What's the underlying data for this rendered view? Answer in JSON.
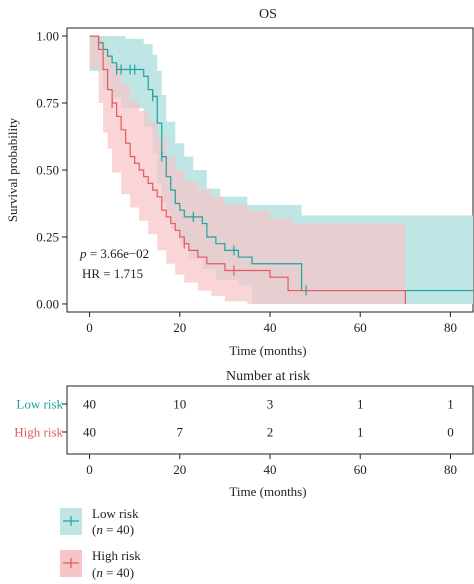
{
  "title": "OS",
  "colors": {
    "low": "#1aa5a0",
    "high": "#e45a5f",
    "low_band": "#bfe6e4",
    "high_band": "#f6c5c7",
    "overlap": "#dcc7c4"
  },
  "annotations": {
    "p_label": "p",
    "p_value": " = 3.66e−02",
    "hr": "HR = 1.715"
  },
  "chart_data": [
    {
      "type": "line",
      "title": "OS",
      "xlabel": "Time (months)",
      "ylabel": "Survival probability",
      "xlim": [
        -5,
        85
      ],
      "ylim": [
        -0.03,
        1.03
      ],
      "x_ticks": [
        0,
        20,
        40,
        60,
        80
      ],
      "y_ticks": [
        0.0,
        0.25,
        0.5,
        0.75,
        1.0
      ],
      "y_tick_labels": [
        "0.00",
        "0.25",
        "0.50",
        "0.75",
        "1.00"
      ],
      "grid": false,
      "series": [
        {
          "name": "Low risk",
          "steps": [
            [
              0,
              1.0
            ],
            [
              2,
              0.975
            ],
            [
              3,
              0.95
            ],
            [
              4,
              0.925
            ],
            [
              5,
              0.9
            ],
            [
              6,
              0.875
            ],
            [
              12,
              0.85
            ],
            [
              13,
              0.8
            ],
            [
              14,
              0.775
            ],
            [
              15,
              0.675
            ],
            [
              16,
              0.55
            ],
            [
              17,
              0.475
            ],
            [
              18,
              0.425
            ],
            [
              19,
              0.375
            ],
            [
              20,
              0.35
            ],
            [
              21,
              0.325
            ],
            [
              25,
              0.3
            ],
            [
              26,
              0.25
            ],
            [
              28,
              0.225
            ],
            [
              30,
              0.2
            ],
            [
              33,
              0.175
            ],
            [
              36,
              0.15
            ],
            [
              47,
              0.05
            ],
            [
              85,
              0.05
            ]
          ],
          "ci_upper": [
            [
              0,
              1.0
            ],
            [
              4,
              1.0
            ],
            [
              8,
              0.99
            ],
            [
              12,
              0.97
            ],
            [
              14,
              0.93
            ],
            [
              15,
              0.87
            ],
            [
              16,
              0.78
            ],
            [
              17,
              0.68
            ],
            [
              19,
              0.6
            ],
            [
              21,
              0.55
            ],
            [
              23,
              0.5
            ],
            [
              26,
              0.43
            ],
            [
              29,
              0.4
            ],
            [
              35,
              0.37
            ],
            [
              47,
              0.33
            ],
            [
              85,
              0.33
            ]
          ],
          "ci_lower": [
            [
              0,
              1.0
            ],
            [
              3,
              0.87
            ],
            [
              5,
              0.8
            ],
            [
              7,
              0.77
            ],
            [
              12,
              0.73
            ],
            [
              14,
              0.66
            ],
            [
              15,
              0.56
            ],
            [
              16,
              0.45
            ],
            [
              17,
              0.38
            ],
            [
              18,
              0.34
            ],
            [
              20,
              0.28
            ],
            [
              22,
              0.22
            ],
            [
              25,
              0.17
            ],
            [
              28,
              0.13
            ],
            [
              33,
              0.09
            ],
            [
              36,
              0.07
            ],
            [
              47,
              0.0
            ],
            [
              85,
              0.0
            ]
          ],
          "censor_marks": [
            [
              6,
              0.875
            ],
            [
              7,
              0.875
            ],
            [
              9,
              0.875
            ],
            [
              10,
              0.875
            ],
            [
              14,
              0.775
            ],
            [
              16,
              0.55
            ],
            [
              23,
              0.325
            ],
            [
              32,
              0.2
            ],
            [
              48,
              0.05
            ]
          ]
        },
        {
          "name": "High risk",
          "steps": [
            [
              0,
              1.0
            ],
            [
              2,
              0.95
            ],
            [
              3,
              0.875
            ],
            [
              4,
              0.8
            ],
            [
              5,
              0.75
            ],
            [
              6,
              0.7
            ],
            [
              7,
              0.65
            ],
            [
              8,
              0.6
            ],
            [
              9,
              0.55
            ],
            [
              10,
              0.525
            ],
            [
              11,
              0.5
            ],
            [
              12,
              0.475
            ],
            [
              13,
              0.45
            ],
            [
              14,
              0.425
            ],
            [
              15,
              0.4
            ],
            [
              16,
              0.35
            ],
            [
              17,
              0.325
            ],
            [
              18,
              0.3
            ],
            [
              19,
              0.275
            ],
            [
              20,
              0.25
            ],
            [
              21,
              0.225
            ],
            [
              22,
              0.2
            ],
            [
              24,
              0.175
            ],
            [
              26,
              0.15
            ],
            [
              30,
              0.125
            ],
            [
              40,
              0.1
            ],
            [
              44,
              0.05
            ],
            [
              70,
              0.0
            ]
          ],
          "ci_upper": [
            [
              0,
              1.0
            ],
            [
              2,
              1.0
            ],
            [
              3,
              0.97
            ],
            [
              4,
              0.93
            ],
            [
              5,
              0.89
            ],
            [
              7,
              0.82
            ],
            [
              9,
              0.76
            ],
            [
              11,
              0.72
            ],
            [
              13,
              0.68
            ],
            [
              15,
              0.62
            ],
            [
              17,
              0.55
            ],
            [
              19,
              0.5
            ],
            [
              21,
              0.46
            ],
            [
              24,
              0.43
            ],
            [
              27,
              0.4
            ],
            [
              30,
              0.37
            ],
            [
              35,
              0.35
            ],
            [
              40,
              0.32
            ],
            [
              45,
              0.3
            ],
            [
              70,
              0.3
            ]
          ],
          "ci_lower": [
            [
              0,
              1.0
            ],
            [
              2,
              0.88
            ],
            [
              3,
              0.75
            ],
            [
              4,
              0.64
            ],
            [
              5,
              0.58
            ],
            [
              7,
              0.49
            ],
            [
              9,
              0.41
            ],
            [
              11,
              0.36
            ],
            [
              13,
              0.31
            ],
            [
              15,
              0.26
            ],
            [
              17,
              0.2
            ],
            [
              19,
              0.15
            ],
            [
              21,
              0.11
            ],
            [
              24,
              0.08
            ],
            [
              27,
              0.05
            ],
            [
              30,
              0.03
            ],
            [
              35,
              0.01
            ],
            [
              40,
              0.0
            ],
            [
              70,
              0.0
            ]
          ],
          "censor_marks": [
            [
              5,
              0.75
            ],
            [
              21,
              0.225
            ],
            [
              32,
              0.125
            ]
          ]
        }
      ]
    },
    {
      "type": "table",
      "title": "Number at risk",
      "xlabel": "Time (months)",
      "x_ticks": [
        0,
        20,
        40,
        60,
        80
      ],
      "rows": [
        {
          "label": "Low risk",
          "values": [
            "40",
            "10",
            "3",
            "1",
            "1"
          ]
        },
        {
          "label": "High risk",
          "values": [
            "40",
            "7",
            "2",
            "1",
            "0"
          ]
        }
      ]
    }
  ],
  "legend": [
    {
      "label": "Low risk",
      "n_label": "n",
      "n_value": " = 40"
    },
    {
      "label": "High risk",
      "n_label": "n",
      "n_value": " = 40"
    }
  ]
}
